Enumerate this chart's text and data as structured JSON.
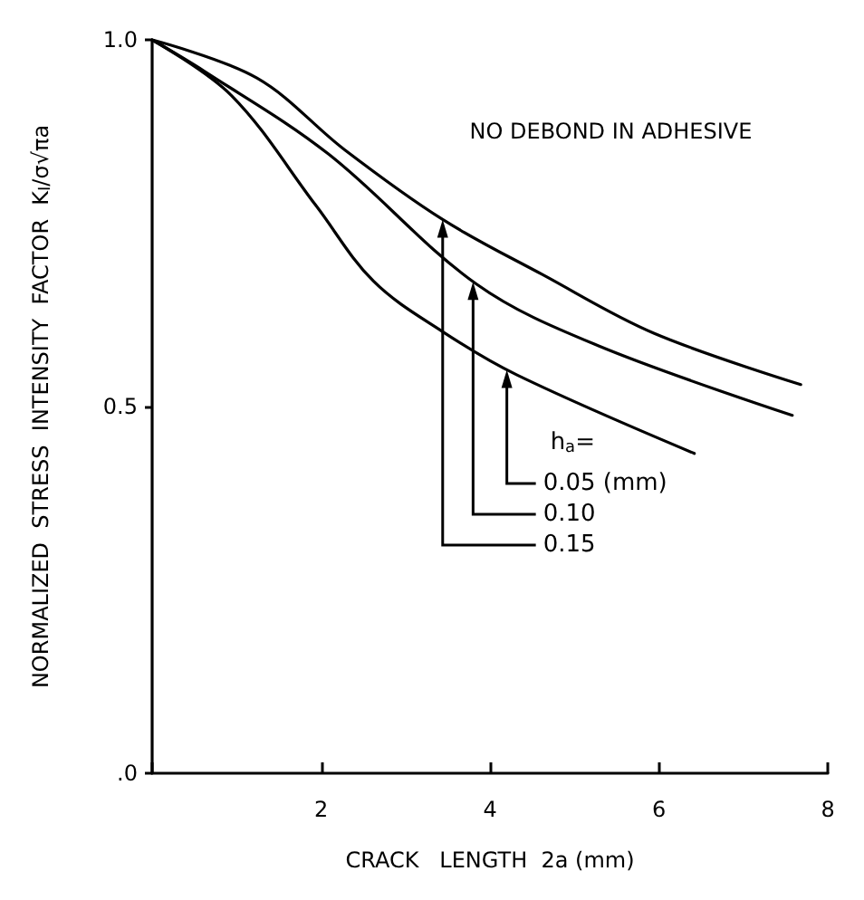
{
  "chart_data": {
    "type": "line",
    "xlabel": "CRACK   LENGTH  2a (mm)",
    "ylabel": "NORMALIZED  STRESS  INTENSITY  FACTOR  K$_{I}$/σ√πa",
    "xlim": [
      0,
      8
    ],
    "xticks": [
      {
        "value": 0,
        "label": null
      },
      2,
      4,
      6,
      8
    ],
    "ylim": [
      0,
      1
    ],
    "yticks": [
      {
        "value": 0,
        "label": ".0"
      },
      {
        "value": 0.5,
        "label": "0.5"
      },
      {
        "value": 1,
        "label": "1.0"
      }
    ],
    "series": [
      {
        "color": "#000000",
        "x": [
          0,
          1.24,
          2.28,
          3.44,
          4.62,
          5.94,
          7.68
        ],
        "values": [
          1,
          0.948,
          0.85,
          0.755,
          0.68,
          0.6,
          0.53
        ]
      },
      {
        "color": "#000000",
        "x": [
          0,
          0.62,
          2.08,
          3.84,
          5.28,
          7.58
        ],
        "values": [
          1,
          0.957,
          0.845,
          0.667,
          0.583,
          0.488
        ]
      },
      {
        "color": "#000000",
        "x": [
          0,
          0.94,
          1.94,
          2.62,
          3.44,
          4.32,
          6.42
        ],
        "values": [
          1,
          0.924,
          0.774,
          0.671,
          0.602,
          0.543,
          0.436
        ]
      }
    ],
    "annotations": [
      "NO DEBOND IN ADHESIVE",
      "h$_{a}$=",
      {
        "text": "0.05 (mm)",
        "x": 4.2,
        "y": 0.55
      },
      {
        "text": "0.10",
        "x": 3.8,
        "y": 0.67
      },
      {
        "text": "0.15",
        "x": 3.44,
        "y": 0.755
      }
    ],
    "grid": false,
    "marker": "none",
    "line_style": "solid"
  }
}
